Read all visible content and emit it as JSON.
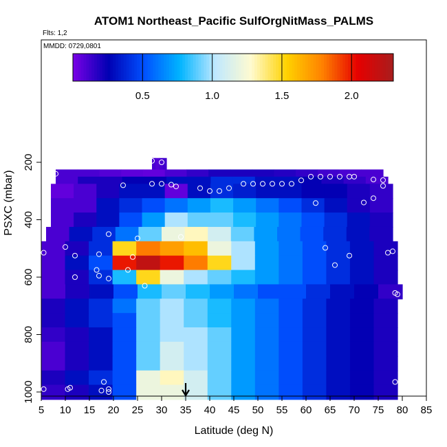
{
  "chart_data": {
    "type": "heatmap",
    "title": "ATOM1 Northeast_Pacific SulfOrgNitMass_PALMS",
    "flights_note": "Flts: 1,2",
    "date_note": "MMDD: 0729,0801",
    "xlabel": "Latitude (deg N)",
    "ylabel": "PSXC (mbar)",
    "xlim": [
      5,
      85
    ],
    "ylim": [
      1000,
      200
    ],
    "x_ticks": [
      "5",
      "10",
      "15",
      "20",
      "25",
      "30",
      "35",
      "40",
      "45",
      "50",
      "55",
      "60",
      "65",
      "70",
      "75",
      "80",
      "85"
    ],
    "y_ticks": [
      "200",
      "400",
      "600",
      "800",
      "1000"
    ],
    "y_reversed": true,
    "grid": false,
    "colorbar": {
      "position": "top-inside",
      "range": [
        0,
        2.3
      ],
      "ticks": [
        "0.5",
        "1.0",
        "1.5",
        "2.0"
      ],
      "colors": [
        "#7a00e6",
        "#0000b3",
        "#0050ff",
        "#00b4ff",
        "#bfe8ff",
        "#fffbd0",
        "#ffd200",
        "#ff8200",
        "#e60000",
        "#a81d1d"
      ]
    },
    "marker": {
      "type": "arrow",
      "x": 35,
      "label": ""
    },
    "pressure_bins": [
      {
        "p": 200,
        "x_range": [
          28,
          31
        ],
        "values": [
          0.1,
          0.08,
          0.1,
          0.12
        ]
      },
      {
        "p": 250,
        "x_range": [
          8,
          76
        ],
        "values": [
          0.1,
          0.1,
          0.08,
          0.06,
          0.05,
          0.1,
          0.15,
          0.2,
          0.2,
          0.2,
          0.18,
          0.15,
          0.12,
          0.1,
          0.1
        ]
      },
      {
        "p": 275,
        "x_range": [
          8,
          77
        ],
        "values": [
          0.1,
          0.2,
          0.2,
          0.25,
          0.25,
          0.3,
          0.3,
          0.4,
          0.4,
          0.3,
          0.3,
          0.25,
          0.2,
          0.15,
          0.1
        ]
      },
      {
        "p": 300,
        "x_range": [
          7,
          78
        ],
        "values": [
          0.05,
          0.1,
          0.2,
          0.3,
          0.3,
          0.05,
          0.3,
          0.4,
          0.35,
          0.3,
          0.3,
          0.25,
          0.25,
          0.2,
          0.15
        ]
      },
      {
        "p": 350,
        "x_range": [
          7,
          78
        ],
        "values": [
          0.1,
          0.1,
          0.3,
          0.4,
          0.5,
          0.6,
          0.7,
          0.8,
          0.7,
          0.6,
          0.5,
          0.4,
          0.3,
          0.2,
          0.15
        ]
      },
      {
        "p": 400,
        "x_range": [
          7,
          78
        ],
        "values": [
          0.1,
          0.2,
          0.3,
          0.5,
          0.7,
          1.0,
          0.9,
          0.9,
          0.8,
          0.7,
          0.6,
          0.5,
          0.4,
          0.3,
          0.2
        ]
      },
      {
        "p": 450,
        "x_range": [
          6,
          78
        ],
        "values": [
          0.1,
          0.3,
          0.4,
          0.6,
          0.9,
          1.2,
          1.3,
          1.1,
          0.9,
          0.7,
          0.6,
          0.5,
          0.4,
          0.3,
          0.2
        ]
      },
      {
        "p": 500,
        "x_range": [
          5,
          79
        ],
        "values": [
          0.1,
          0.2,
          0.4,
          1.5,
          1.8,
          1.7,
          1.6,
          1.2,
          1.0,
          0.7,
          0.6,
          0.5,
          0.4,
          0.3,
          0.2
        ]
      },
      {
        "p": 550,
        "x_range": [
          5,
          79
        ],
        "values": [
          0.1,
          0.3,
          0.5,
          2.0,
          2.2,
          2.0,
          1.8,
          1.5,
          1.0,
          0.7,
          0.6,
          0.5,
          0.4,
          0.3,
          0.2
        ]
      },
      {
        "p": 600,
        "x_range": [
          5,
          79
        ],
        "values": [
          0.1,
          0.2,
          0.4,
          0.8,
          1.5,
          1.2,
          1.0,
          0.9,
          0.8,
          0.7,
          0.6,
          0.5,
          0.4,
          0.3,
          0.2
        ]
      },
      {
        "p": 650,
        "x_range": [
          5,
          80
        ],
        "values": [
          0.1,
          0.2,
          0.3,
          0.5,
          0.8,
          0.9,
          0.8,
          0.7,
          0.6,
          0.5,
          0.5,
          0.4,
          0.3,
          0.25,
          0.15
        ]
      },
      {
        "p": 700,
        "x_range": [
          5,
          79
        ],
        "values": [
          0.2,
          0.3,
          0.4,
          0.6,
          0.9,
          1.0,
          0.9,
          0.8,
          0.7,
          0.6,
          0.5,
          0.4,
          0.3,
          0.25,
          0.2
        ]
      },
      {
        "p": 750,
        "x_range": [
          5,
          79
        ],
        "values": [
          0.2,
          0.3,
          0.4,
          0.5,
          0.9,
          1.0,
          0.9,
          0.8,
          0.7,
          0.6,
          0.5,
          0.4,
          0.3,
          0.25,
          0.2
        ]
      },
      {
        "p": 800,
        "x_range": [
          5,
          79
        ],
        "values": [
          0.15,
          0.2,
          0.3,
          0.5,
          0.9,
          1.0,
          1.0,
          0.9,
          0.7,
          0.6,
          0.5,
          0.4,
          0.3,
          0.25,
          0.2
        ]
      },
      {
        "p": 850,
        "x_range": [
          5,
          79
        ],
        "values": [
          0.1,
          0.2,
          0.3,
          0.5,
          0.9,
          1.1,
          1.0,
          0.9,
          0.7,
          0.6,
          0.5,
          0.4,
          0.3,
          0.25,
          0.2
        ]
      },
      {
        "p": 900,
        "x_range": [
          5,
          79
        ],
        "values": [
          0.1,
          0.2,
          0.3,
          0.5,
          0.9,
          1.1,
          1.0,
          0.9,
          0.7,
          0.6,
          0.5,
          0.4,
          0.3,
          0.25,
          0.2
        ]
      },
      {
        "p": 950,
        "x_range": [
          5,
          79
        ],
        "values": [
          0.2,
          0.3,
          0.4,
          0.5,
          1.2,
          1.3,
          1.1,
          0.9,
          0.7,
          0.6,
          0.5,
          0.4,
          0.3,
          0.25,
          0.2
        ]
      },
      {
        "p": 1000,
        "x_range": [
          5,
          79
        ],
        "values": [
          0.15,
          0.2,
          0.3,
          0.5,
          1.2,
          1.2,
          1.1,
          0.9,
          0.7,
          0.6,
          0.5,
          0.4,
          0.3,
          0.25,
          0.2
        ]
      }
    ],
    "sample_points": [
      {
        "x": 28,
        "p": 195
      },
      {
        "x": 30,
        "p": 200
      },
      {
        "x": 21,
        "p": 215
      },
      {
        "x": 67,
        "p": 215
      },
      {
        "x": 8,
        "p": 240
      },
      {
        "x": 61,
        "p": 250
      },
      {
        "x": 63,
        "p": 250
      },
      {
        "x": 65,
        "p": 250
      },
      {
        "x": 67,
        "p": 250
      },
      {
        "x": 69,
        "p": 250
      },
      {
        "x": 70,
        "p": 250
      },
      {
        "x": 74,
        "p": 260
      },
      {
        "x": 76,
        "p": 262
      },
      {
        "x": 59,
        "p": 263
      },
      {
        "x": 28,
        "p": 275
      },
      {
        "x": 30,
        "p": 275
      },
      {
        "x": 32,
        "p": 278
      },
      {
        "x": 33,
        "p": 284
      },
      {
        "x": 38,
        "p": 290
      },
      {
        "x": 22,
        "p": 280
      },
      {
        "x": 40,
        "p": 300
      },
      {
        "x": 42,
        "p": 300
      },
      {
        "x": 44,
        "p": 290
      },
      {
        "x": 47,
        "p": 275
      },
      {
        "x": 49,
        "p": 275
      },
      {
        "x": 51,
        "p": 275
      },
      {
        "x": 53,
        "p": 275
      },
      {
        "x": 55,
        "p": 275
      },
      {
        "x": 57,
        "p": 275
      },
      {
        "x": 76,
        "p": 282
      },
      {
        "x": 74,
        "p": 325
      },
      {
        "x": 72,
        "p": 340
      },
      {
        "x": 62,
        "p": 342
      },
      {
        "x": 19,
        "p": 450
      },
      {
        "x": 25,
        "p": 465
      },
      {
        "x": 34,
        "p": 460
      },
      {
        "x": 10,
        "p": 495
      },
      {
        "x": 64,
        "p": 498
      },
      {
        "x": 5.5,
        "p": 515
      },
      {
        "x": 12,
        "p": 525
      },
      {
        "x": 17,
        "p": 520
      },
      {
        "x": 69,
        "p": 525
      },
      {
        "x": 77,
        "p": 515
      },
      {
        "x": 78,
        "p": 510
      },
      {
        "x": 24,
        "p": 530
      },
      {
        "x": 66,
        "p": 558
      },
      {
        "x": 16.5,
        "p": 575
      },
      {
        "x": 23,
        "p": 575
      },
      {
        "x": 12,
        "p": 600
      },
      {
        "x": 19,
        "p": 605
      },
      {
        "x": 17,
        "p": 595
      },
      {
        "x": 26.5,
        "p": 630
      },
      {
        "x": 78.5,
        "p": 655
      },
      {
        "x": 79,
        "p": 660
      },
      {
        "x": 18,
        "p": 965
      },
      {
        "x": 78.5,
        "p": 965
      },
      {
        "x": 11,
        "p": 985
      },
      {
        "x": 10.5,
        "p": 990
      },
      {
        "x": 5.5,
        "p": 990
      },
      {
        "x": 17.5,
        "p": 995
      },
      {
        "x": 19,
        "p": 1000
      },
      {
        "x": 19,
        "p": 990
      }
    ]
  }
}
